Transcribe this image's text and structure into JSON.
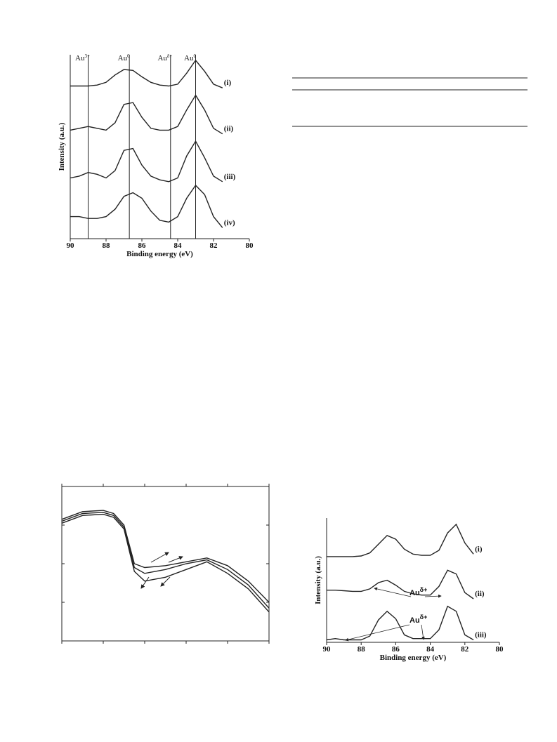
{
  "chart_data": [
    {
      "type": "line",
      "xlabel": "Binding energy (eV)",
      "ylabel": "Intensity (a.u.)",
      "color": "#222222",
      "xlim": [
        90,
        80
      ],
      "xticks": [
        90,
        88,
        86,
        84,
        82,
        80
      ],
      "ylim": [
        0,
        100
      ],
      "tick_labels": true,
      "frame": false,
      "x": [
        90,
        89.5,
        89,
        88.5,
        88,
        87.5,
        87,
        86.5,
        86,
        85.5,
        85,
        84.5,
        84,
        83.5,
        83,
        82.5,
        82,
        81.5
      ],
      "series": [
        {
          "name": "(i)",
          "values": [
            83,
            83,
            83,
            83.5,
            85,
            89,
            92,
            91.5,
            88,
            85,
            83.5,
            83,
            84,
            90,
            97,
            91,
            84,
            82
          ]
        },
        {
          "name": "(ii)",
          "values": [
            59,
            60,
            61,
            60,
            59,
            63,
            73,
            74,
            66,
            60,
            59,
            59,
            61,
            70,
            78,
            70,
            60,
            57
          ]
        },
        {
          "name": "(iii)",
          "values": [
            33,
            34,
            36,
            35,
            33,
            37,
            48,
            49,
            40,
            34,
            32,
            31,
            33,
            45,
            53,
            44,
            34,
            31
          ]
        },
        {
          "name": "(iv)",
          "values": [
            12,
            12,
            11,
            11,
            12,
            16,
            23,
            25,
            22,
            15,
            10,
            9,
            12,
            22,
            29,
            24,
            12,
            6
          ]
        }
      ],
      "annotations": [
        {
          "text": "Au",
          "sup": "3+",
          "x": 89
        },
        {
          "text": "Au",
          "sup": "0",
          "x": 86.7
        },
        {
          "text": "Au",
          "sup": "δ+",
          "x": 84.4
        },
        {
          "text": "Au",
          "sup": "0",
          "x": 83
        }
      ]
    },
    {
      "type": "line",
      "color": "#222222",
      "xlim": [
        0,
        5
      ],
      "xticks": [
        0,
        1,
        2,
        3,
        4,
        5
      ],
      "ylim": [
        0,
        4
      ],
      "yticks": [
        0,
        1,
        2,
        3,
        4
      ],
      "tick_labels": false,
      "frame": true,
      "x": [
        0,
        0.5,
        1,
        1.25,
        1.5,
        1.75,
        2,
        2.5,
        3,
        3.5,
        4,
        4.5,
        5
      ],
      "series": [
        {
          "values": [
            3.15,
            3.35,
            3.38,
            3.3,
            3.0,
            2.0,
            1.9,
            1.95,
            2.05,
            2.15,
            1.95,
            1.55,
            1.0
          ]
        },
        {
          "values": [
            3.1,
            3.3,
            3.33,
            3.25,
            2.95,
            1.9,
            1.75,
            1.85,
            2.0,
            2.1,
            1.85,
            1.45,
            0.85
          ]
        },
        {
          "values": [
            3.05,
            3.25,
            3.28,
            3.2,
            2.9,
            1.8,
            1.55,
            1.65,
            1.85,
            2.05,
            1.75,
            1.35,
            0.75
          ]
        }
      ]
    },
    {
      "type": "line",
      "xlabel": "Binding energy (eV)",
      "ylabel": "Intensity (a.u.)",
      "color": "#222222",
      "xlim": [
        90,
        80
      ],
      "xticks": [
        90,
        88,
        86,
        84,
        82,
        80
      ],
      "ylim": [
        0,
        100
      ],
      "tick_labels": true,
      "frame": false,
      "x": [
        90,
        89.5,
        89,
        88.5,
        88,
        87.5,
        87,
        86.5,
        86,
        85.5,
        85,
        84.5,
        84,
        83.5,
        83,
        82.5,
        82,
        81.5
      ],
      "series": [
        {
          "name": "(i)",
          "values": [
            69,
            69,
            69,
            69,
            69.5,
            72,
            79,
            86,
            83,
            75,
            71,
            70,
            70,
            74,
            88,
            95,
            80,
            71
          ]
        },
        {
          "name": "(ii)",
          "values": [
            42,
            42,
            41.5,
            41,
            41,
            43,
            48,
            50,
            46,
            41,
            39,
            38,
            38,
            45,
            58,
            55,
            40,
            35
          ]
        },
        {
          "name": "(iii)",
          "values": [
            2,
            3,
            2,
            2,
            2,
            5,
            18,
            25,
            19,
            6,
            3,
            3,
            3,
            10,
            29,
            25,
            6,
            2
          ]
        }
      ],
      "annotations": [
        {
          "text": "Au",
          "sup": "δ+"
        },
        {
          "text": "Au",
          "sup": "δ+"
        }
      ]
    }
  ]
}
